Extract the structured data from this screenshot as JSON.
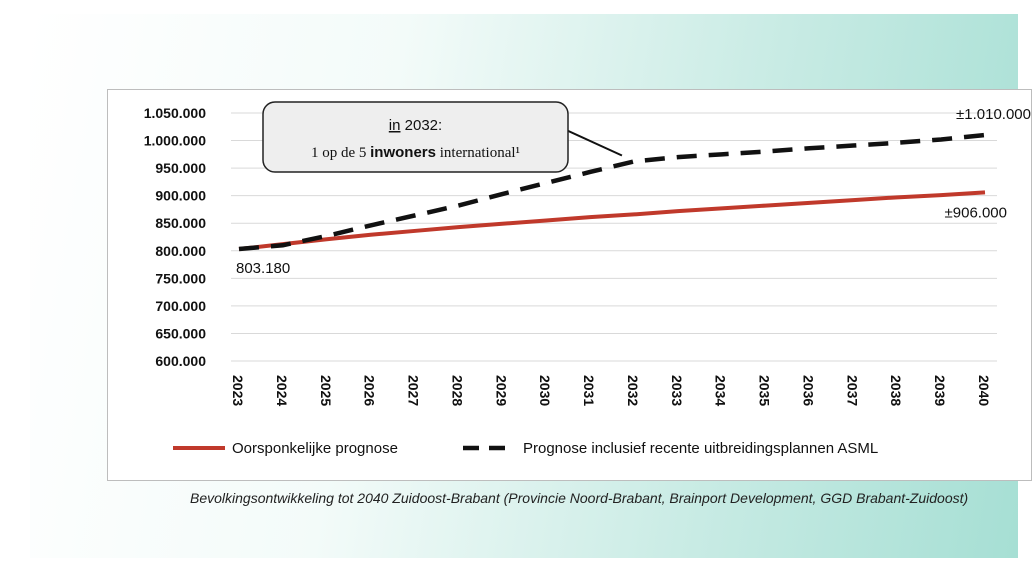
{
  "chart_data": {
    "type": "line",
    "x": [
      "2023",
      "2024",
      "2025",
      "2026",
      "2027",
      "2028",
      "2029",
      "2030",
      "2031",
      "2032",
      "2033",
      "2034",
      "2035",
      "2036",
      "2037",
      "2038",
      "2039",
      "2040"
    ],
    "ylim": [
      600000,
      1050000
    ],
    "yticks": [
      "1.050.000",
      "1.000.000",
      "950.000",
      "900.000",
      "850.000",
      "800.000",
      "750.000",
      "700.000",
      "650.000",
      "600.000"
    ],
    "ytick_values": [
      1050000,
      1000000,
      950000,
      900000,
      850000,
      800000,
      750000,
      700000,
      650000,
      600000
    ],
    "series": [
      {
        "name": "Oorsponkelijke prognose",
        "color": "#c0392b",
        "style": "solid",
        "values": [
          803180,
          812000,
          821000,
          829000,
          836000,
          843000,
          849000,
          855000,
          861000,
          866000,
          872000,
          877000,
          882000,
          887000,
          892000,
          897000,
          901000,
          906000
        ]
      },
      {
        "name": "Prognose inclusief recente uitbreidingsplannen ASML",
        "color": "#111111",
        "style": "dashed",
        "values": [
          803180,
          810000,
          827000,
          846000,
          864000,
          882000,
          903000,
          923000,
          943000,
          962000,
          970000,
          975000,
          980000,
          986000,
          991000,
          996000,
          1002000,
          1010000
        ]
      }
    ],
    "annotations": {
      "start_label": "803.180",
      "end_dashed_label": "±1.010.000",
      "end_solid_label": "±906.000",
      "callout": {
        "line1_a": "in",
        "line1_b": " 2032:",
        "line2_a": "1 op de 5 ",
        "line2_b": "inwoners",
        "line2_c": " international¹"
      }
    },
    "legend_position": "bottom",
    "grid": true
  },
  "caption": "Bevolkingsontwikkeling tot 2040 Zuidoost-Brabant (Provincie Noord-Brabant, Brainport Development, GGD Brabant-Zuidoost)"
}
